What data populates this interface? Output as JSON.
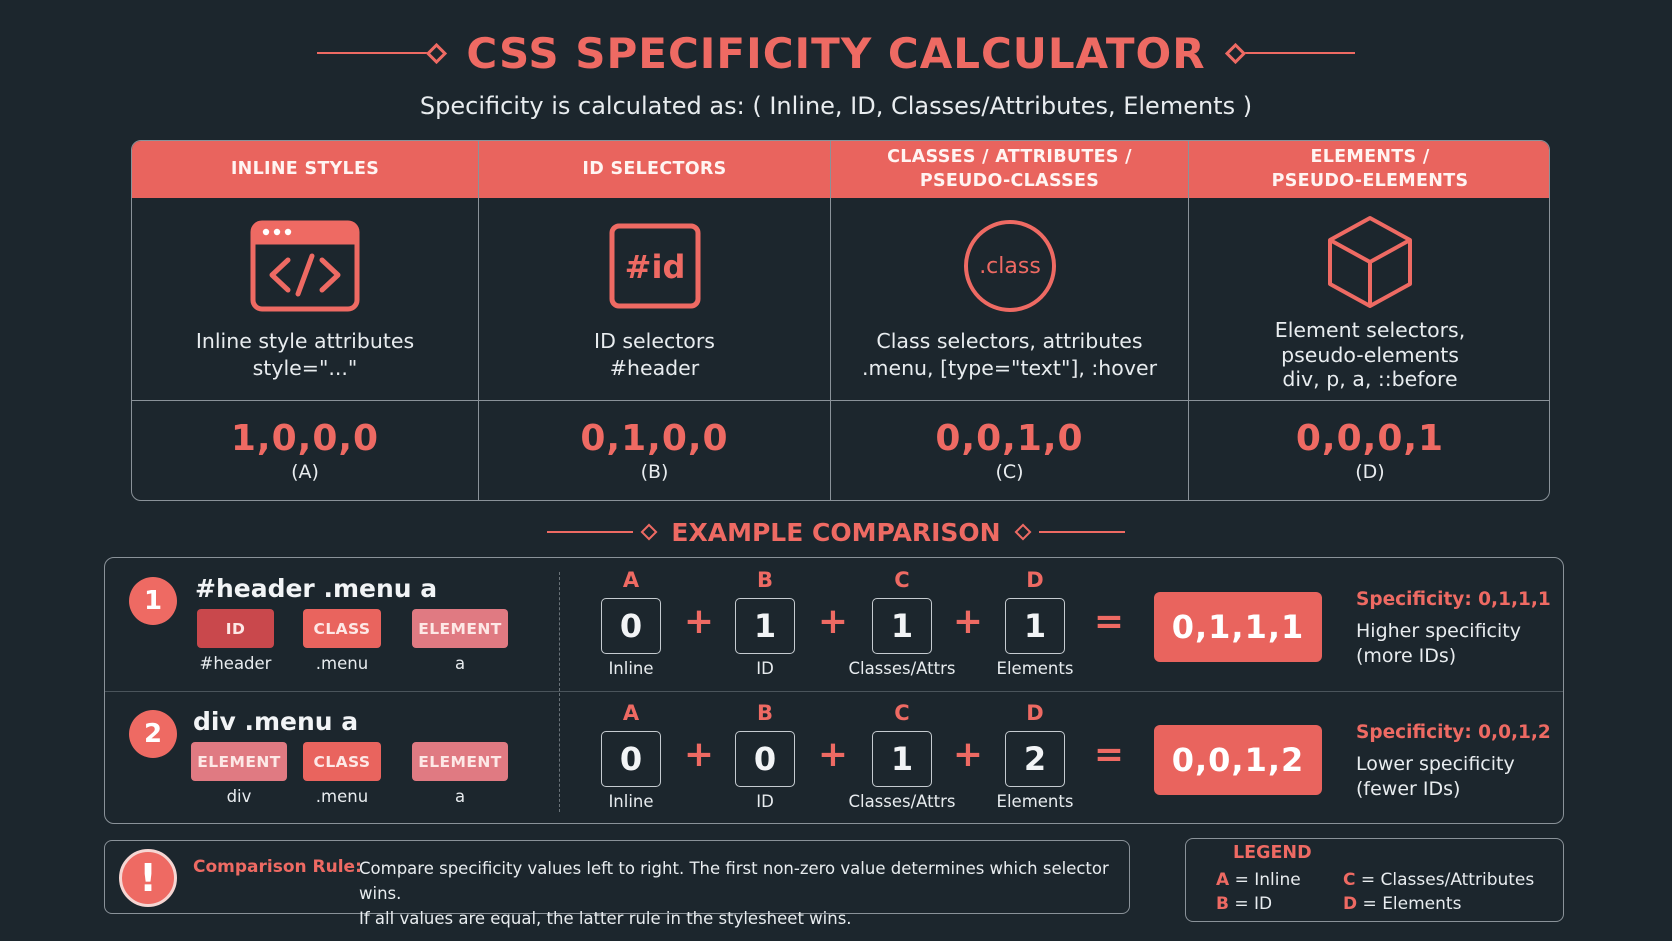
{
  "header": {
    "title": "CSS SPECIFICITY CALCULATOR",
    "subtitle": "Specificity is calculated as: ( Inline, ID, Classes/Attributes, Elements )"
  },
  "columns": [
    {
      "head_line1": "INLINE STYLES",
      "head_line2": "",
      "icon": "code-window-icon",
      "desc_line1": "Inline style attributes",
      "desc_line2": "style=\"...\"",
      "desc_line3": "",
      "value": "1,0,0,0",
      "letter": "(A)"
    },
    {
      "head_line1": "ID SELECTORS",
      "head_line2": "",
      "icon": "hash-id-icon",
      "icon_text": "#id",
      "desc_line1": "ID selectors",
      "desc_line2": "#header",
      "desc_line3": "",
      "value": "0,1,0,0",
      "letter": "(B)"
    },
    {
      "head_line1": "CLASSES / ATTRIBUTES /",
      "head_line2": "PSEUDO-CLASSES",
      "icon": "class-circle-icon",
      "icon_text": ".class",
      "desc_line1": "Class selectors, attributes",
      "desc_line2": ".menu, [type=\"text\"], :hover",
      "desc_line3": "",
      "value": "0,0,1,0",
      "letter": "(C)"
    },
    {
      "head_line1": "ELEMENTS /",
      "head_line2": "PSEUDO-ELEMENTS",
      "icon": "cube-icon",
      "desc_line1": "Element selectors,",
      "desc_line2": "pseudo-elements",
      "desc_line3": "div, p, a, ::before",
      "value": "0,0,0,1",
      "letter": "(D)"
    }
  ],
  "example_heading": "EXAMPLE COMPARISON",
  "examples": [
    {
      "number": "1",
      "selector": "#header .menu a",
      "tags": [
        {
          "label": "ID",
          "sub": "#header"
        },
        {
          "label": "CLASS",
          "sub": ".menu"
        },
        {
          "label": "ELEMENT",
          "sub": "a"
        }
      ],
      "letters": [
        "A",
        "B",
        "C",
        "D"
      ],
      "digits": [
        "0",
        "1",
        "1",
        "1"
      ],
      "digit_labels": [
        "Inline",
        "ID",
        "Classes/Attrs",
        "Elements"
      ],
      "plus": "+",
      "equals": "=",
      "result": "0,1,1,1",
      "spec_label": "Specificity: 0,1,1,1",
      "note_line1": "Higher specificity",
      "note_line2": "(more IDs)"
    },
    {
      "number": "2",
      "selector": "div .menu a",
      "tags": [
        {
          "label": "ELEMENT",
          "sub": "div"
        },
        {
          "label": "CLASS",
          "sub": ".menu"
        },
        {
          "label": "ELEMENT",
          "sub": "a"
        }
      ],
      "letters": [
        "A",
        "B",
        "C",
        "D"
      ],
      "digits": [
        "0",
        "0",
        "1",
        "2"
      ],
      "digit_labels": [
        "Inline",
        "ID",
        "Classes/Attrs",
        "Elements"
      ],
      "plus": "+",
      "equals": "=",
      "result": "0,0,1,2",
      "spec_label": "Specificity: 0,0,1,2",
      "note_line1": "Lower specificity",
      "note_line2": "(fewer IDs)"
    }
  ],
  "rule": {
    "icon": "!",
    "title": "Comparison Rule:",
    "line1": "Compare specificity values left to right. The first non-zero value determines which selector wins.",
    "line2": "If all values are equal, the latter rule in the stylesheet wins."
  },
  "legend": {
    "title": "LEGEND",
    "items": [
      {
        "key": "A",
        "eq": "=",
        "label": "Inline"
      },
      {
        "key": "B",
        "eq": "=",
        "label": "ID"
      },
      {
        "key": "C",
        "eq": "=",
        "label": "Classes/Attributes"
      },
      {
        "key": "D",
        "eq": "=",
        "label": "Elements"
      }
    ]
  },
  "colors": {
    "background": "#1c262d",
    "accent": "#ee6a63",
    "header_fill": "#e9645e",
    "id_tag": "#c9484c",
    "element_tag": "#e07a82"
  }
}
